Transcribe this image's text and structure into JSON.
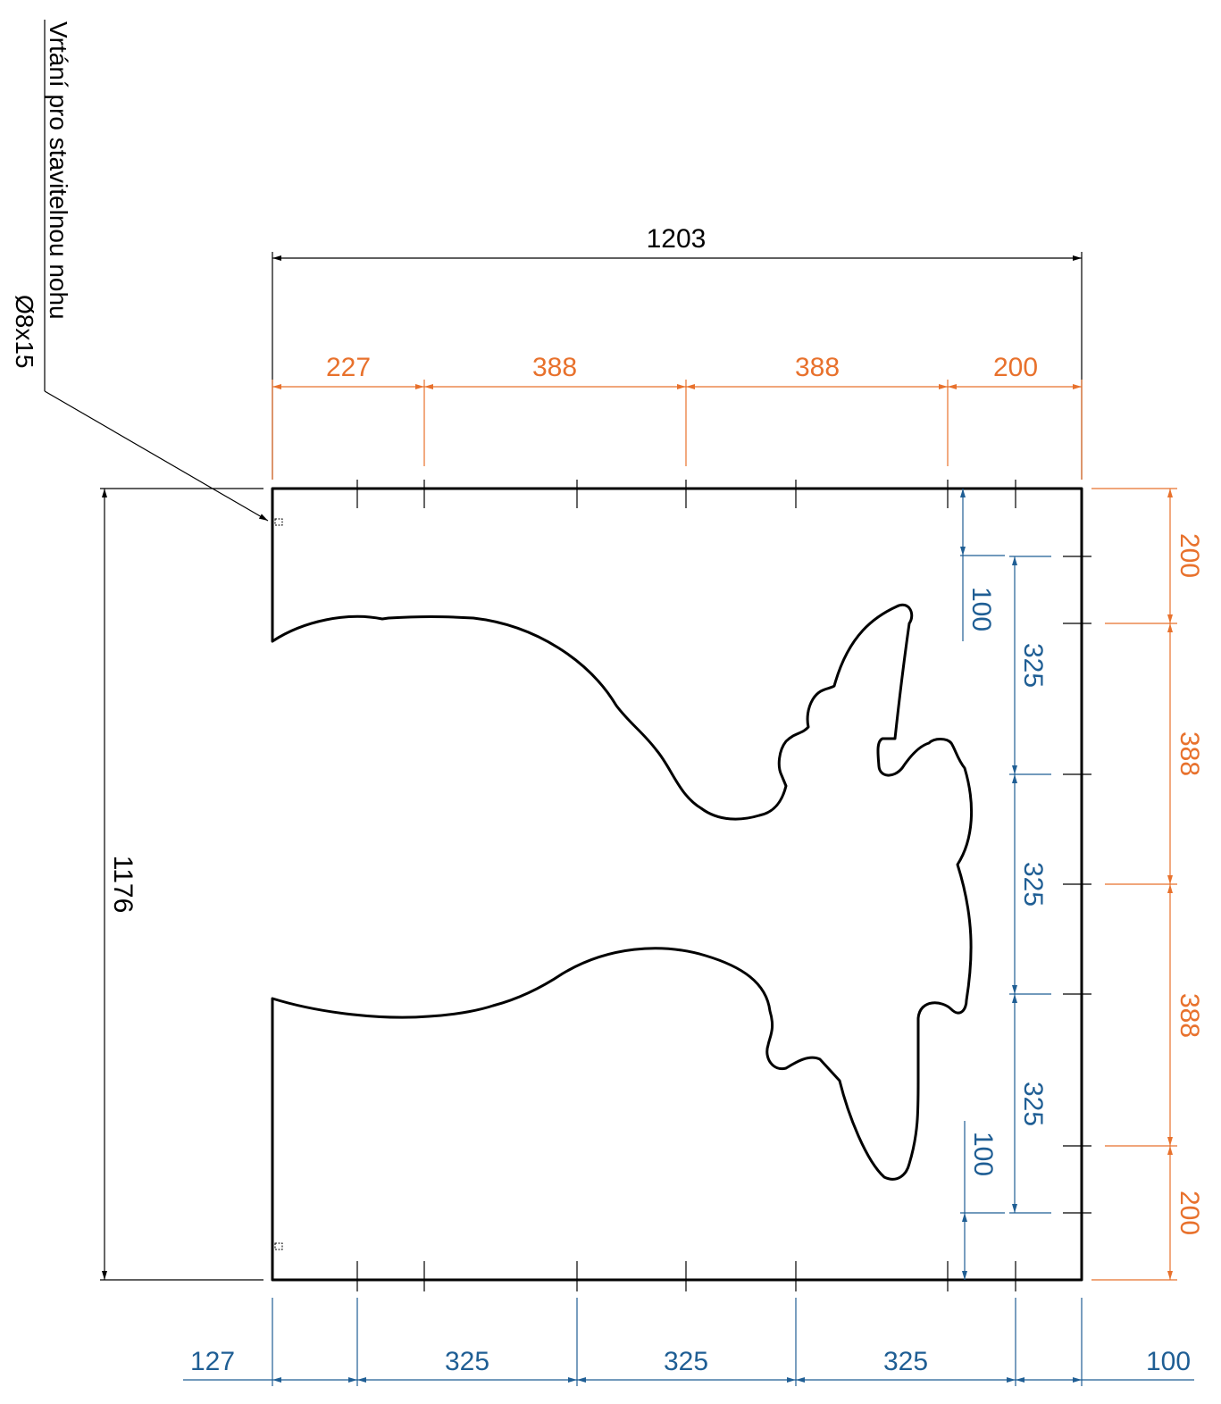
{
  "colors": {
    "black": "#000000",
    "orange": "#e8712c",
    "blue": "#1f5e94"
  },
  "note": {
    "line1": "Vrtání pro stavitelnou nohu",
    "line2": "Ø8x15"
  },
  "dimensions": {
    "overall_width": "1203",
    "overall_height": "1176",
    "top_orange": [
      "227",
      "388",
      "388",
      "200"
    ],
    "bottom_blue": [
      "127",
      "325",
      "325",
      "325",
      "100"
    ],
    "right_orange": [
      "200",
      "388",
      "388",
      "200"
    ],
    "right_blue": [
      "325",
      "325",
      "325"
    ],
    "inner_blue_top": "100",
    "inner_blue_bottom": "100"
  }
}
